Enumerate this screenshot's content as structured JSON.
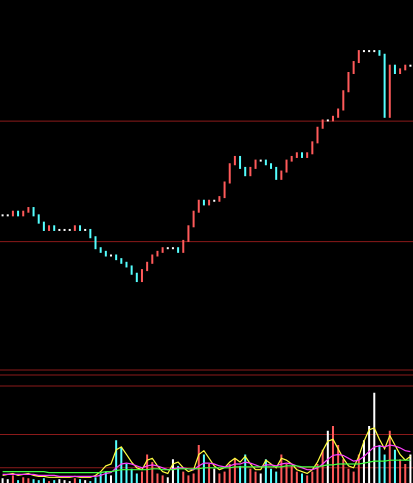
{
  "chart_data": {
    "type": "price-volume",
    "price": {
      "values": [
        41,
        41,
        42,
        41,
        42,
        43,
        41,
        39,
        37,
        38,
        37,
        37,
        37,
        37,
        38,
        37,
        37,
        35,
        32,
        31,
        30,
        30,
        29,
        28,
        27,
        25,
        23,
        26,
        28,
        30,
        31,
        32,
        32,
        32,
        31,
        34,
        38,
        42,
        45,
        44,
        45,
        45,
        46,
        50,
        55,
        57,
        54,
        52,
        54,
        56,
        56,
        55,
        54,
        51,
        53,
        56,
        57,
        58,
        57,
        58,
        61,
        65,
        67,
        67,
        68,
        70,
        75,
        80,
        83,
        86,
        86,
        86,
        86,
        85,
        68,
        82,
        80,
        81,
        82,
        82
      ],
      "ylim": [
        0,
        100
      ],
      "levels": [
        66.8,
        33.8
      ],
      "up_color": "#ff5a5a",
      "down_color": "#54ffff",
      "flat_color": "#ffffff"
    },
    "volume": {
      "values": [
        5,
        4,
        8,
        3,
        6,
        5,
        4,
        3,
        5,
        2,
        3,
        4,
        3,
        2,
        5,
        4,
        3,
        2,
        6,
        10,
        12,
        8,
        45,
        38,
        20,
        15,
        10,
        12,
        30,
        22,
        10,
        8,
        6,
        25,
        18,
        12,
        8,
        10,
        40,
        30,
        20,
        15,
        10,
        12,
        20,
        25,
        18,
        30,
        15,
        12,
        10,
        25,
        15,
        12,
        30,
        20,
        18,
        12,
        10,
        8,
        12,
        20,
        35,
        55,
        60,
        40,
        25,
        15,
        12,
        30,
        45,
        60,
        95,
        40,
        30,
        55,
        35,
        25,
        20,
        30
      ],
      "ylim": [
        0,
        100
      ],
      "levels": [
        51,
        16
      ],
      "series": [
        {
          "color": "#ffff40",
          "values": [
            8,
            9,
            10,
            8,
            9,
            10,
            8,
            7,
            7,
            6,
            6,
            6,
            6,
            6,
            7,
            6,
            6,
            6,
            8,
            12,
            18,
            20,
            35,
            38,
            30,
            22,
            16,
            14,
            24,
            26,
            18,
            12,
            10,
            20,
            22,
            16,
            12,
            14,
            30,
            34,
            26,
            18,
            14,
            16,
            22,
            26,
            22,
            28,
            20,
            14,
            14,
            24,
            20,
            16,
            26,
            24,
            20,
            14,
            12,
            10,
            14,
            22,
            34,
            44,
            46,
            36,
            26,
            18,
            16,
            28,
            44,
            56,
            58,
            46,
            36,
            50,
            40,
            30,
            24,
            28
          ]
        },
        {
          "color": "#ff40ff",
          "values": [
            9,
            9,
            9,
            9,
            9,
            9,
            9,
            8,
            8,
            8,
            8,
            7,
            7,
            7,
            7,
            7,
            7,
            7,
            7,
            8,
            10,
            11,
            16,
            20,
            21,
            20,
            18,
            16,
            18,
            19,
            18,
            16,
            14,
            15,
            16,
            16,
            15,
            14,
            18,
            21,
            21,
            20,
            18,
            17,
            18,
            20,
            20,
            22,
            21,
            19,
            17,
            19,
            19,
            18,
            20,
            21,
            20,
            18,
            16,
            14,
            14,
            16,
            20,
            25,
            29,
            30,
            29,
            26,
            23,
            24,
            28,
            33,
            38,
            39,
            38,
            40,
            39,
            37,
            34,
            33
          ]
        },
        {
          "color": "#40ff40",
          "values": [
            12,
            12,
            12,
            12,
            12,
            12,
            12,
            12,
            12,
            11,
            11,
            11,
            11,
            11,
            11,
            11,
            11,
            11,
            11,
            11,
            12,
            12,
            13,
            14,
            14,
            14,
            14,
            14,
            14,
            15,
            15,
            14,
            14,
            14,
            15,
            15,
            15,
            15,
            15,
            16,
            16,
            16,
            16,
            16,
            16,
            17,
            17,
            17,
            17,
            17,
            17,
            17,
            17,
            17,
            17,
            18,
            18,
            18,
            17,
            17,
            17,
            17,
            18,
            19,
            19,
            20,
            20,
            20,
            20,
            20,
            21,
            22,
            23,
            23,
            23,
            24,
            24,
            24,
            24,
            24
          ]
        }
      ]
    }
  }
}
